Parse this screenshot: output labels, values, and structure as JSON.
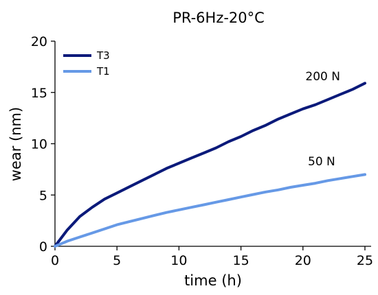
{
  "chart_data": {
    "type": "line",
    "title": "PR-6Hz-20°C",
    "xlabel": "time (h)",
    "ylabel": "wear (nm)",
    "xlim": [
      0,
      25.5
    ],
    "ylim": [
      0,
      20
    ],
    "xticks": [
      0,
      5,
      10,
      15,
      20,
      25
    ],
    "yticks": [
      0,
      5,
      10,
      15,
      20
    ],
    "grid": false,
    "legend_position": "top-left",
    "series": [
      {
        "name": "T3",
        "color": "#0b1a7a",
        "x": [
          0,
          0.5,
          1,
          2,
          3,
          4,
          5,
          6,
          7,
          8,
          9,
          10,
          11,
          12,
          13,
          14,
          15,
          16,
          17,
          18,
          19,
          20,
          21,
          22,
          23,
          24,
          25
        ],
        "y": [
          0,
          0.8,
          1.6,
          2.9,
          3.8,
          4.6,
          5.2,
          5.8,
          6.4,
          7.0,
          7.6,
          8.1,
          8.6,
          9.1,
          9.6,
          10.2,
          10.7,
          11.3,
          11.8,
          12.4,
          12.9,
          13.4,
          13.8,
          14.3,
          14.8,
          15.3,
          15.9
        ]
      },
      {
        "name": "T1",
        "color": "#6699e6",
        "x": [
          0,
          0.5,
          1,
          2,
          3,
          4,
          5,
          6,
          7,
          8,
          9,
          10,
          11,
          12,
          13,
          14,
          15,
          16,
          17,
          18,
          19,
          20,
          21,
          22,
          23,
          24,
          25
        ],
        "y": [
          0,
          0.25,
          0.5,
          0.9,
          1.3,
          1.7,
          2.1,
          2.4,
          2.7,
          3.0,
          3.3,
          3.55,
          3.8,
          4.05,
          4.3,
          4.55,
          4.8,
          5.05,
          5.3,
          5.5,
          5.75,
          5.95,
          6.15,
          6.4,
          6.6,
          6.8,
          7.0
        ]
      }
    ],
    "annotations": [
      {
        "text": "200 N",
        "x": 20.2,
        "y": 16.2
      },
      {
        "text": "50 N",
        "x": 20.4,
        "y": 7.9
      }
    ]
  }
}
